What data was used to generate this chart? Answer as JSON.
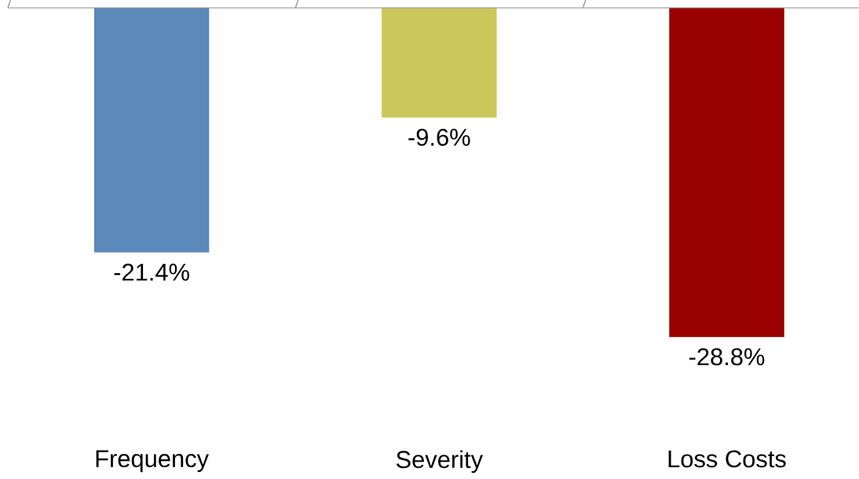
{
  "chart_data": {
    "type": "bar",
    "categories": [
      "Frequency",
      "Severity",
      "Loss Costs"
    ],
    "values": [
      -21.4,
      -9.6,
      -28.8
    ],
    "colors": [
      "#5b89b9",
      "#cbc85b",
      "#990000"
    ],
    "value_labels": [
      "-21.4%",
      "-9.6%",
      "-28.8%"
    ]
  }
}
